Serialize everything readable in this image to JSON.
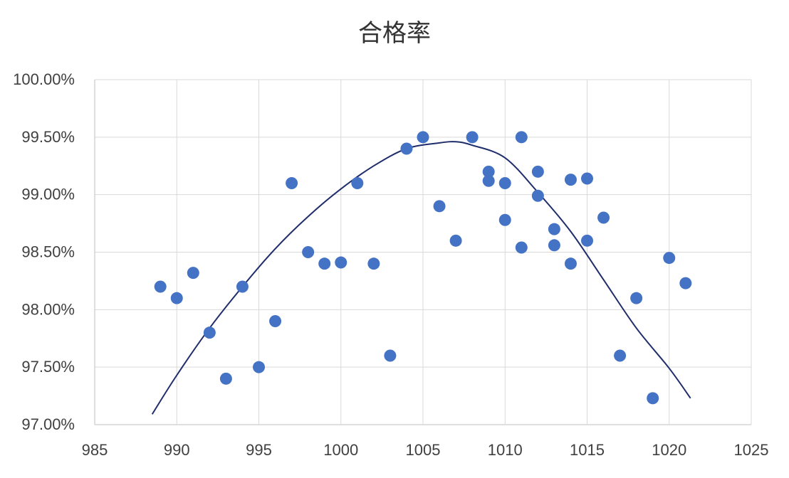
{
  "chart_data": {
    "type": "scatter",
    "title": "合格率",
    "xlabel": "",
    "ylabel": "",
    "xlim": [
      985,
      1025
    ],
    "ylim": [
      0.97,
      1.0
    ],
    "x_ticks": [
      985,
      990,
      995,
      1000,
      1005,
      1010,
      1015,
      1020,
      1025
    ],
    "x_tick_labels": [
      "985",
      "990",
      "995",
      "1000",
      "1005",
      "1010",
      "1015",
      "1020",
      "1025"
    ],
    "y_ticks": [
      0.97,
      0.975,
      0.98,
      0.985,
      0.99,
      0.995,
      1.0
    ],
    "y_tick_labels": [
      "97.00%",
      "97.50%",
      "98.00%",
      "98.50%",
      "99.00%",
      "99.50%",
      "100.00%"
    ],
    "grid": true,
    "point_color": "#4472c4",
    "trendline_color": "#1f2d6b",
    "points": [
      {
        "x": 989,
        "y": 0.982
      },
      {
        "x": 990,
        "y": 0.981
      },
      {
        "x": 991,
        "y": 0.9832
      },
      {
        "x": 992,
        "y": 0.978
      },
      {
        "x": 993,
        "y": 0.974
      },
      {
        "x": 994,
        "y": 0.982
      },
      {
        "x": 995,
        "y": 0.975
      },
      {
        "x": 996,
        "y": 0.979
      },
      {
        "x": 997,
        "y": 0.991
      },
      {
        "x": 998,
        "y": 0.985
      },
      {
        "x": 999,
        "y": 0.984
      },
      {
        "x": 1000,
        "y": 0.9841
      },
      {
        "x": 1001,
        "y": 0.991
      },
      {
        "x": 1002,
        "y": 0.984
      },
      {
        "x": 1003,
        "y": 0.976
      },
      {
        "x": 1004,
        "y": 0.994
      },
      {
        "x": 1005,
        "y": 0.995
      },
      {
        "x": 1006,
        "y": 0.989
      },
      {
        "x": 1007,
        "y": 0.986
      },
      {
        "x": 1008,
        "y": 0.995
      },
      {
        "x": 1009,
        "y": 0.992
      },
      {
        "x": 1009,
        "y": 0.9912
      },
      {
        "x": 1010,
        "y": 0.991
      },
      {
        "x": 1010,
        "y": 0.9878
      },
      {
        "x": 1011,
        "y": 0.995
      },
      {
        "x": 1011,
        "y": 0.9854
      },
      {
        "x": 1012,
        "y": 0.992
      },
      {
        "x": 1012,
        "y": 0.9899
      },
      {
        "x": 1013,
        "y": 0.987
      },
      {
        "x": 1013,
        "y": 0.9856
      },
      {
        "x": 1014,
        "y": 0.9913
      },
      {
        "x": 1014,
        "y": 0.984
      },
      {
        "x": 1015,
        "y": 0.9914
      },
      {
        "x": 1015,
        "y": 0.986
      },
      {
        "x": 1016,
        "y": 0.988
      },
      {
        "x": 1017,
        "y": 0.976
      },
      {
        "x": 1018,
        "y": 0.981
      },
      {
        "x": 1019,
        "y": 0.9723
      },
      {
        "x": 1020,
        "y": 0.9845
      },
      {
        "x": 1021,
        "y": 0.9823
      }
    ],
    "trendline": {
      "type": "polynomial",
      "x": [
        988.5,
        990,
        992,
        994,
        996,
        998,
        1000,
        1002,
        1004,
        1006,
        1007,
        1008,
        1010,
        1012,
        1014,
        1016,
        1018,
        1020,
        1021.3
      ],
      "y": [
        0.9709,
        0.9743,
        0.9784,
        0.982,
        0.9853,
        0.9881,
        0.9905,
        0.9925,
        0.994,
        0.9945,
        0.9946,
        0.9943,
        0.9932,
        0.9902,
        0.9868,
        0.9826,
        0.9784,
        0.9749,
        0.9723
      ]
    }
  }
}
